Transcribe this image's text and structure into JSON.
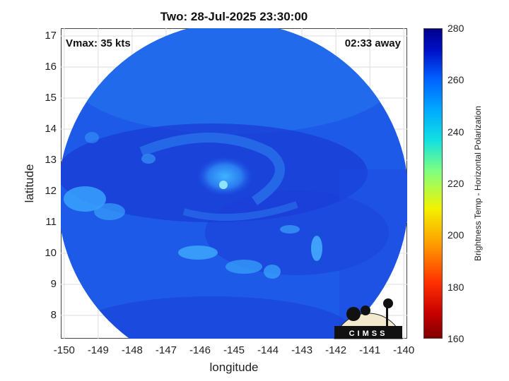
{
  "title": "Two: 28-Jul-2025 23:30:00",
  "annotations": {
    "vmax": "Vmax: 35 kts",
    "time_away": "02:33 away"
  },
  "xlabel": "longitude",
  "ylabel": "latitude",
  "x_ticks": [
    "-150",
    "-149",
    "-148",
    "-147",
    "-146",
    "-145",
    "-144",
    "-143",
    "-142",
    "-141",
    "-140"
  ],
  "y_ticks": [
    "17",
    "16",
    "15",
    "14",
    "13",
    "12",
    "11",
    "10",
    "9",
    "8"
  ],
  "xlim": [
    -150.1,
    -139.9
  ],
  "ylim": [
    7.25,
    17.25
  ],
  "colorbar": {
    "label": "Brightness Temp - Horizontal Polarization",
    "ticks": [
      "280",
      "260",
      "240",
      "220",
      "200",
      "180",
      "160"
    ],
    "range": [
      160,
      280
    ]
  },
  "swath": {
    "center_lon": -145.0,
    "center_lat": 12.2,
    "description_colors": {
      "background": "#1e56e8",
      "cool": "#2a9cf0",
      "warm": "#1a2fc6"
    }
  },
  "logo_text": "CIMSS",
  "grid": true
}
